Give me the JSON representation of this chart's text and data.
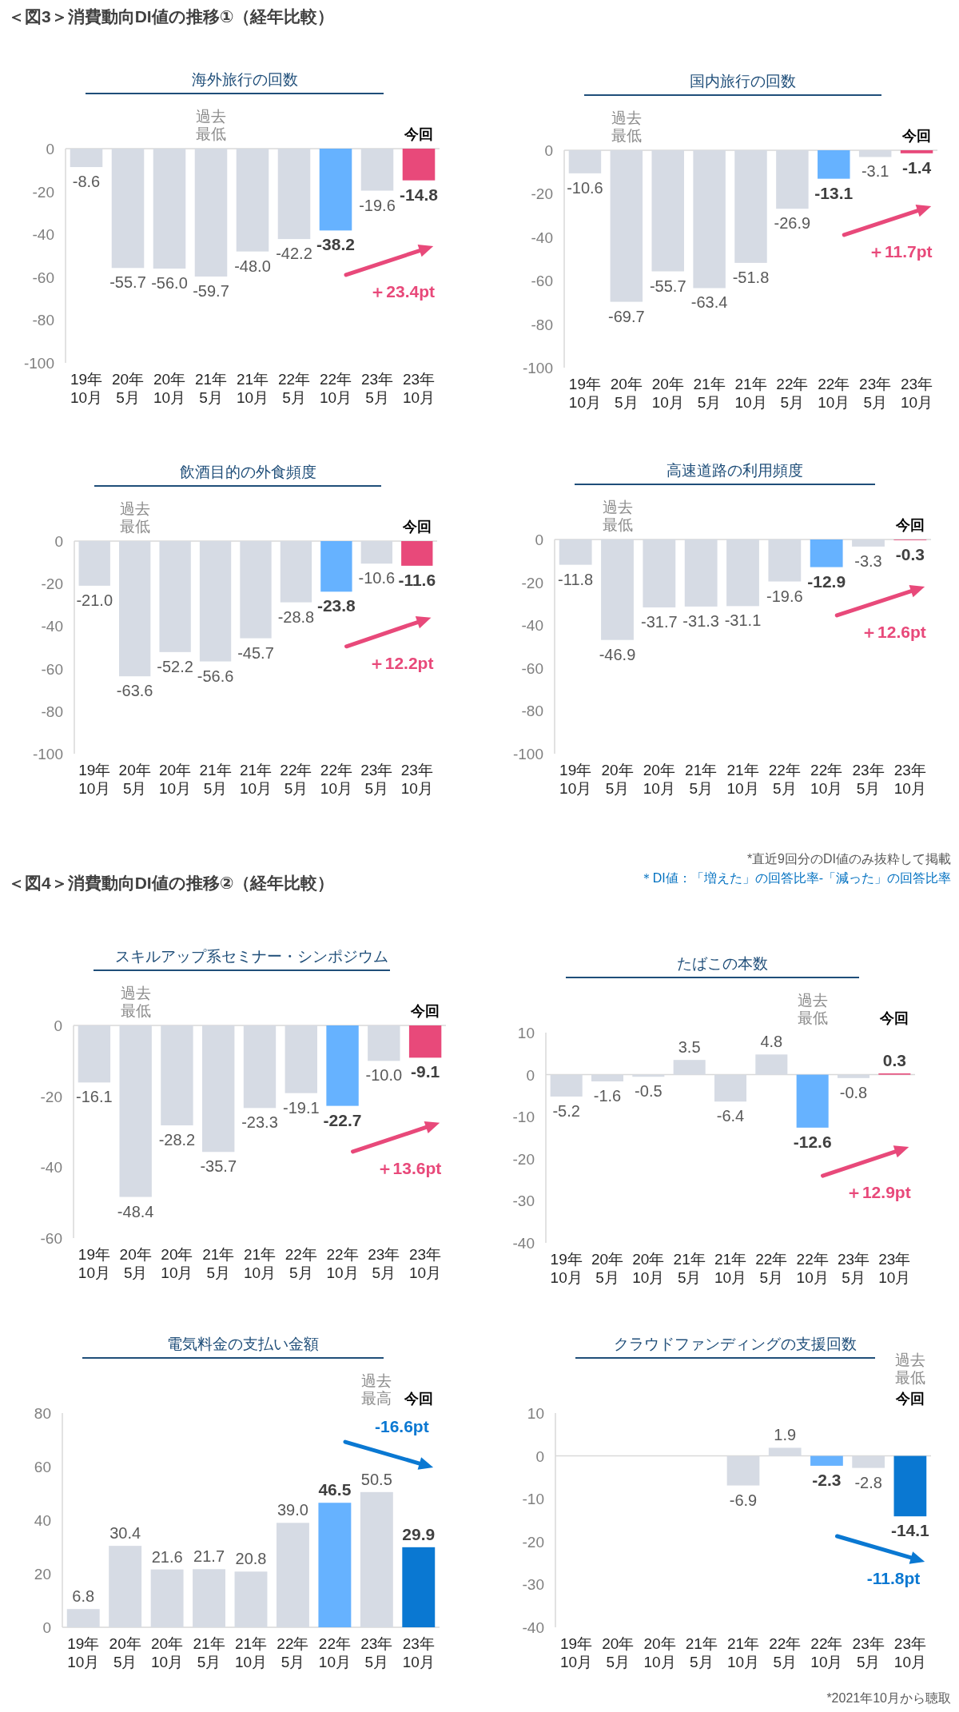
{
  "chart_data": [
    {
      "type": "bar",
      "title": "海外旅行の回数",
      "categories": [
        "19年10月",
        "20年5月",
        "20年10月",
        "21年5月",
        "21年10月",
        "22年5月",
        "22年10月",
        "23年5月",
        "23年10月"
      ],
      "values": [
        -8.6,
        -55.7,
        -56.0,
        -59.7,
        -48.0,
        -42.2,
        -38.2,
        -19.6,
        -14.8
      ],
      "value_labels": [
        "-8.6",
        "-55.7",
        "-56.0",
        "-59.7",
        "-48.0",
        "-42.2",
        "-38.2",
        "-19.6",
        "-14.8"
      ],
      "colors": [
        "#d6dbe4",
        "#d6dbe4",
        "#d6dbe4",
        "#d6dbe4",
        "#d6dbe4",
        "#d6dbe4",
        "#66b2ff",
        "#d6dbe4",
        "#e8497a"
      ],
      "ylim": [
        -100,
        0
      ],
      "yticks": [
        0,
        -20,
        -40,
        -60,
        -80,
        -100
      ],
      "annotations": [
        "＜図3＞消費動向DI値の推移①（経年比較）",
        "過去最低",
        "今回",
        "＋23.4pt"
      ]
    },
    {
      "type": "bar",
      "title": "国内旅行の回数",
      "categories": [
        "19年10月",
        "20年5月",
        "20年10月",
        "21年5月",
        "21年10月",
        "22年5月",
        "22年10月",
        "23年5月",
        "23年10月"
      ],
      "values": [
        -10.6,
        -69.7,
        -55.7,
        -63.4,
        -51.8,
        -26.9,
        -13.1,
        -3.1,
        -1.4
      ],
      "value_labels": [
        "-10.6",
        "-69.7",
        "-55.7",
        "-63.4",
        "-51.8",
        "-26.9",
        "-13.1",
        "-3.1",
        "-1.4"
      ],
      "colors": [
        "#d6dbe4",
        "#d6dbe4",
        "#d6dbe4",
        "#d6dbe4",
        "#d6dbe4",
        "#d6dbe4",
        "#66b2ff",
        "#d6dbe4",
        "#e8497a"
      ],
      "ylim": [
        -100,
        0
      ],
      "yticks": [
        0,
        -20,
        -40,
        -60,
        -80,
        -100
      ],
      "annotations": [
        "過去最低",
        "今回",
        "＋11.7pt"
      ]
    },
    {
      "type": "bar",
      "title": "飲酒目的の外食頻度",
      "categories": [
        "19年10月",
        "20年5月",
        "20年10月",
        "21年5月",
        "21年10月",
        "22年5月",
        "22年10月",
        "23年5月",
        "23年10月"
      ],
      "values": [
        -21.0,
        -63.6,
        -52.2,
        -56.6,
        -45.7,
        -28.8,
        -23.8,
        -10.6,
        -11.6
      ],
      "value_labels": [
        "-21.0",
        "-63.6",
        "-52.2",
        "-56.6",
        "-45.7",
        "-28.8",
        "-23.8",
        "-10.6",
        "-11.6"
      ],
      "colors": [
        "#d6dbe4",
        "#d6dbe4",
        "#d6dbe4",
        "#d6dbe4",
        "#d6dbe4",
        "#d6dbe4",
        "#66b2ff",
        "#d6dbe4",
        "#e8497a"
      ],
      "ylim": [
        -100,
        0
      ],
      "yticks": [
        0,
        -20,
        -40,
        -60,
        -80,
        -100
      ],
      "annotations": [
        "過去最低",
        "今回",
        "＋12.2pt"
      ]
    },
    {
      "type": "bar",
      "title": "高速道路の利用頻度",
      "categories": [
        "19年10月",
        "20年5月",
        "20年10月",
        "21年5月",
        "21年10月",
        "22年5月",
        "22年10月",
        "23年5月",
        "23年10月"
      ],
      "values": [
        -11.8,
        -46.9,
        -31.7,
        -31.3,
        -31.1,
        -19.6,
        -12.9,
        -3.3,
        -0.3
      ],
      "value_labels": [
        "-11.8",
        "-46.9",
        "-31.7",
        "-31.3",
        "-31.1",
        "-19.6",
        "-12.9",
        "-3.3",
        "-0.3"
      ],
      "colors": [
        "#d6dbe4",
        "#d6dbe4",
        "#d6dbe4",
        "#d6dbe4",
        "#d6dbe4",
        "#d6dbe4",
        "#66b2ff",
        "#d6dbe4",
        "#e8497a"
      ],
      "ylim": [
        -100,
        0
      ],
      "yticks": [
        0,
        -20,
        -40,
        -60,
        -80,
        -100
      ],
      "annotations": [
        "過去最低",
        "今回",
        "＋12.6pt"
      ]
    },
    {
      "type": "bar",
      "title": "スキルアップ系セミナー・シンポジウム",
      "categories": [
        "19年10月",
        "20年5月",
        "20年10月",
        "21年5月",
        "21年10月",
        "22年5月",
        "22年10月",
        "23年5月",
        "23年10月"
      ],
      "values": [
        -16.1,
        -48.4,
        -28.2,
        -35.7,
        -23.3,
        -19.1,
        -22.7,
        -10.0,
        -9.1
      ],
      "value_labels": [
        "-16.1",
        "-48.4",
        "-28.2",
        "-35.7",
        "-23.3",
        "-19.1",
        "-22.7",
        "-10.0",
        "-9.1"
      ],
      "colors": [
        "#d6dbe4",
        "#d6dbe4",
        "#d6dbe4",
        "#d6dbe4",
        "#d6dbe4",
        "#d6dbe4",
        "#66b2ff",
        "#d6dbe4",
        "#e8497a"
      ],
      "ylim": [
        -60,
        0
      ],
      "yticks": [
        0,
        -20,
        -40,
        -60
      ],
      "annotations": [
        "＜図4＞消費動向DI値の推移②（経年比較）",
        "*直近9回分のDI値のみ抜粋して掲載",
        "＊DI値：「増えた」の回答比率-「減った」の回答比率",
        "過去最低",
        "今回",
        "＋13.6pt"
      ]
    },
    {
      "type": "bar",
      "title": "たばこの本数",
      "categories": [
        "19年10月",
        "20年5月",
        "20年10月",
        "21年5月",
        "21年10月",
        "22年5月",
        "22年10月",
        "23年5月",
        "23年10月"
      ],
      "values": [
        -5.2,
        -1.6,
        -0.5,
        3.5,
        -6.4,
        4.8,
        -12.6,
        -0.8,
        0.3
      ],
      "value_labels": [
        "-5.2",
        "-1.6",
        "-0.5",
        "3.5",
        "-6.4",
        "4.8",
        "-12.6",
        "-0.8",
        "0.3"
      ],
      "colors": [
        "#d6dbe4",
        "#d6dbe4",
        "#d6dbe4",
        "#d6dbe4",
        "#d6dbe4",
        "#d6dbe4",
        "#66b2ff",
        "#d6dbe4",
        "#e8497a"
      ],
      "ylim": [
        -40,
        10
      ],
      "yticks": [
        10,
        0,
        -10,
        -20,
        -30,
        -40
      ],
      "annotations": [
        "過去最低",
        "今回",
        "＋12.9pt"
      ]
    },
    {
      "type": "bar",
      "title": "電気料金の支払い金額",
      "categories": [
        "19年10月",
        "20年5月",
        "20年10月",
        "21年5月",
        "21年10月",
        "22年5月",
        "22年10月",
        "23年5月",
        "23年10月"
      ],
      "values": [
        6.8,
        30.4,
        21.6,
        21.7,
        20.8,
        39.0,
        46.5,
        50.5,
        29.9
      ],
      "value_labels": [
        "6.8",
        "30.4",
        "21.6",
        "21.7",
        "20.8",
        "39.0",
        "46.5",
        "50.5",
        "29.9"
      ],
      "colors": [
        "#d6dbe4",
        "#d6dbe4",
        "#d6dbe4",
        "#d6dbe4",
        "#d6dbe4",
        "#d6dbe4",
        "#66b2ff",
        "#d6dbe4",
        "#0a78d2"
      ],
      "ylim": [
        0,
        80
      ],
      "yticks": [
        0,
        20,
        40,
        60,
        80
      ],
      "annotations": [
        "過去最高",
        "今回",
        "-16.6pt"
      ]
    },
    {
      "type": "bar",
      "title": "クラウドファンディングの支援回数",
      "categories": [
        "19年10月",
        "20年5月",
        "20年10月",
        "21年5月",
        "21年10月",
        "22年5月",
        "22年10月",
        "23年5月",
        "23年10月"
      ],
      "values": [
        null,
        null,
        null,
        null,
        -6.9,
        1.9,
        -2.3,
        -2.8,
        -14.1
      ],
      "value_labels": [
        null,
        null,
        null,
        null,
        "-6.9",
        "1.9",
        "-2.3",
        "-2.8",
        "-14.1"
      ],
      "colors": [
        null,
        null,
        null,
        null,
        "#d6dbe4",
        "#d6dbe4",
        "#66b2ff",
        "#d6dbe4",
        "#0a78d2"
      ],
      "ylim": [
        -40,
        10
      ],
      "yticks": [
        10,
        0,
        -10,
        -20,
        -30,
        -40
      ],
      "annotations": [
        "今回",
        "過去最低",
        "-11.8pt",
        "*2021年10月から聴取"
      ]
    }
  ]
}
